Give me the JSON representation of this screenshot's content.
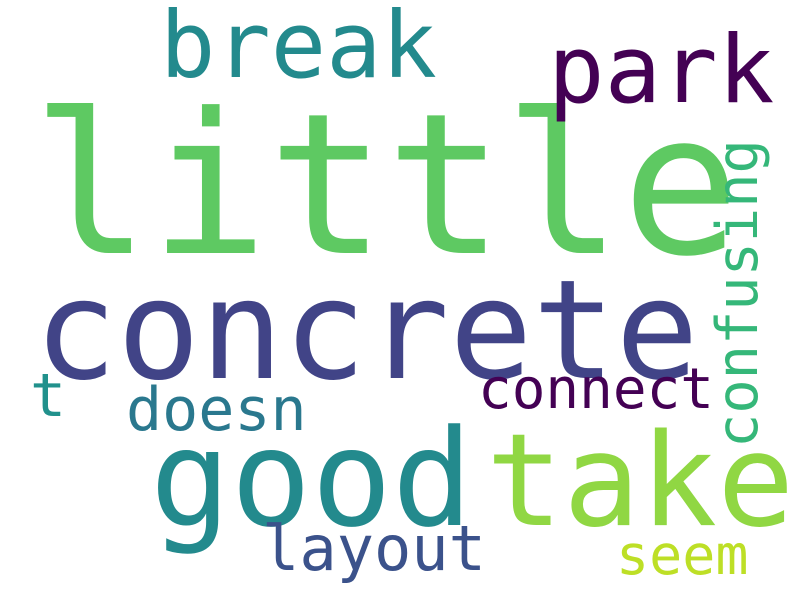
{
  "words": [
    {
      "text": "little",
      "color": "#5ec962"
    },
    {
      "text": "concrete",
      "color": "#414487"
    },
    {
      "text": "good",
      "color": "#238a8d"
    },
    {
      "text": "take",
      "color": "#90d743"
    },
    {
      "text": "break",
      "color": "#238a8d"
    },
    {
      "text": "park",
      "color": "#440154"
    },
    {
      "text": "confusing",
      "color": "#35b779"
    },
    {
      "text": "connect",
      "color": "#440154"
    },
    {
      "text": "doesn",
      "color": "#2a788e"
    },
    {
      "text": "t",
      "color": "#21918c"
    },
    {
      "text": "layout",
      "color": "#3b528b"
    },
    {
      "text": "seem",
      "color": "#bddf26"
    }
  ]
}
